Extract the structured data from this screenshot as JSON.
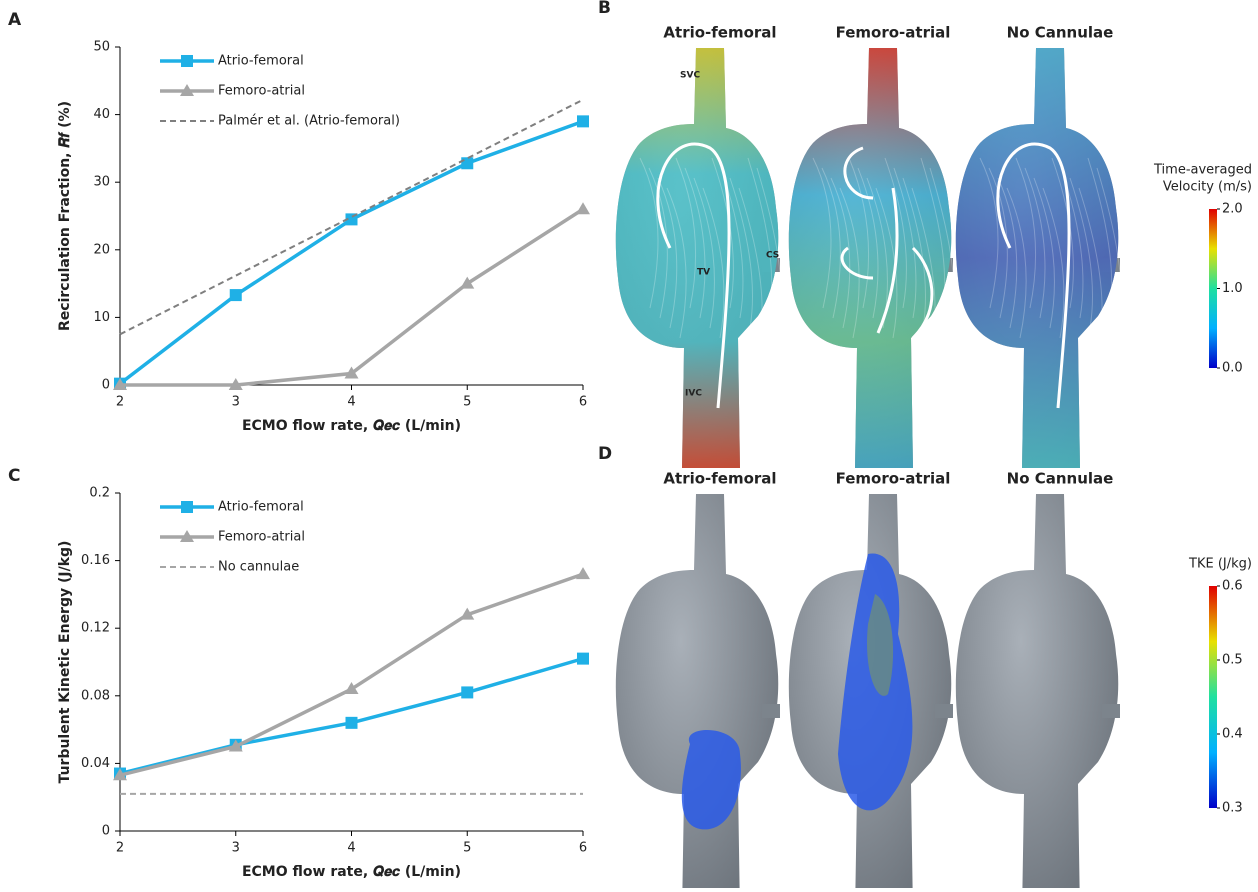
{
  "chart_data": [
    {
      "type": "line",
      "panel": "A",
      "xlabel": "ECMO flow rate, 𝑸𝒆𝒄 (L/min)",
      "ylabel": "Recirculation Fraction, 𝑹𝒇 (%)",
      "x": [
        2,
        3,
        4,
        5,
        6
      ],
      "xlim": [
        2,
        6
      ],
      "xticks": [
        2,
        3,
        4,
        5,
        6
      ],
      "ylim": [
        0,
        50
      ],
      "yticks": [
        0,
        10,
        20,
        30,
        40,
        50
      ],
      "grid": false,
      "legend": "upper left",
      "series": [
        {
          "name": "Atrio-femoral",
          "color": "#1fb0e6",
          "marker": "square",
          "values": [
            0.2,
            13.3,
            24.5,
            32.8,
            39
          ]
        },
        {
          "name": "Femoro-atrial",
          "color": "#a6a6a6",
          "marker": "triangle",
          "values": [
            0,
            0,
            1.7,
            15,
            26
          ]
        },
        {
          "name": "Palmér et al. (Atrio-femoral)",
          "color": "#7f7f7f",
          "dash": true,
          "x": [
            2,
            6
          ],
          "values": [
            7.5,
            42.2
          ]
        }
      ]
    },
    {
      "type": "line",
      "panel": "C",
      "xlabel": "ECMO flow rate, 𝑸𝒆𝒄 (L/min)",
      "ylabel": "Turbulent Kinetic Energy (J/kg)",
      "x": [
        2,
        3,
        4,
        5,
        6
      ],
      "xlim": [
        2,
        6
      ],
      "xticks": [
        2,
        3,
        4,
        5,
        6
      ],
      "ylim": [
        0,
        0.2
      ],
      "yticks": [
        0,
        0.04,
        0.08,
        0.12,
        0.16,
        0.2
      ],
      "grid": false,
      "legend": "upper left",
      "series": [
        {
          "name": "Atrio-femoral",
          "color": "#1fb0e6",
          "marker": "square",
          "values": [
            0.034,
            0.051,
            0.064,
            0.082,
            0.102
          ]
        },
        {
          "name": "Femoro-atrial",
          "color": "#a6a6a6",
          "marker": "triangle",
          "values": [
            0.033,
            0.05,
            0.084,
            0.128,
            0.152
          ]
        },
        {
          "name": "No cannulae",
          "color": "#a6a6a6",
          "dash": true,
          "x": [
            2,
            6
          ],
          "values": [
            0.022,
            0.022
          ]
        }
      ]
    }
  ],
  "images": [
    {
      "panel": "B",
      "columns": [
        "Atrio-femoral",
        "Femoro-atrial",
        "No Cannulae"
      ],
      "labels": [
        "SVC",
        "TV",
        "CS",
        "IVC"
      ],
      "colorbar": {
        "title": [
          "Time-averaged",
          "Velocity (m/s)"
        ],
        "range": [
          0,
          2
        ],
        "ticks": [
          {
            "value": 2,
            "label": "2.0"
          },
          {
            "value": 1,
            "label": "1.0"
          },
          {
            "value": 0,
            "label": "0.0"
          }
        ]
      }
    },
    {
      "panel": "D",
      "columns": [
        "Atrio-femoral",
        "Femoro-atrial",
        "No Cannulae"
      ],
      "colorbar": {
        "title": [
          "TKE (J/kg)"
        ],
        "range": [
          0.3,
          0.6
        ],
        "ticks": [
          0.6,
          0.5,
          0.4,
          0.3
        ]
      }
    }
  ]
}
